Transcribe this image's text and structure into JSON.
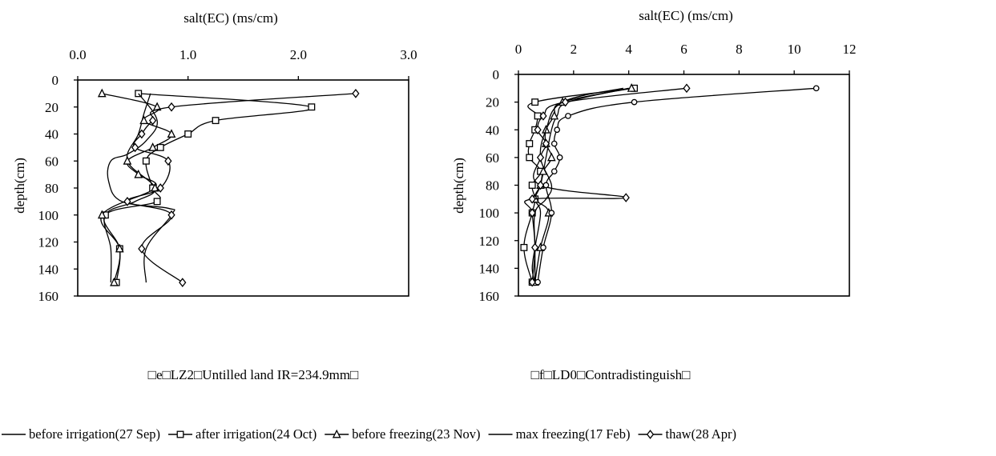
{
  "chart_data": [
    {
      "type": "line",
      "title": "",
      "caption": "□e□LZ2□Untilled land IR=234.9mm□",
      "xlabel": "salt(EC) (ms/cm)",
      "ylabel": "depth(cm)",
      "xlim": [
        0,
        3.0
      ],
      "ylim": [
        0,
        160
      ],
      "y_inverted": true,
      "x_axis_position": "top",
      "grid": false,
      "xticks": [
        0,
        1,
        2,
        3
      ],
      "xtick_labels": [
        "0.0",
        "1.0",
        "2.0",
        "3.0"
      ],
      "yticks": [
        0,
        20,
        40,
        60,
        80,
        100,
        120,
        140,
        160
      ],
      "ytick_labels": [
        "0",
        "20",
        "40",
        "60",
        "80",
        "100",
        "120",
        "140",
        "160"
      ],
      "series": [
        {
          "name": "before irrigation(27 Sep)",
          "marker": "none",
          "x": [
            0.66,
            0.6,
            0.55,
            0.45,
            0.7,
            0.52,
            0.25,
            0.3,
            0.3
          ],
          "y": [
            10,
            25,
            40,
            60,
            80,
            90,
            100,
            125,
            150
          ]
        },
        {
          "name": "after irrigation(24 Oct)",
          "marker": "square",
          "x": [
            0.55,
            2.12,
            1.25,
            1.0,
            0.75,
            0.62,
            0.68,
            0.72,
            0.25,
            0.38,
            0.35
          ],
          "y": [
            10,
            20,
            30,
            40,
            50,
            60,
            80,
            90,
            100,
            125,
            150
          ]
        },
        {
          "name": "before freezing(23 Nov)",
          "marker": "triangle",
          "x": [
            0.22,
            0.72,
            0.6,
            0.85,
            0.68,
            0.45,
            0.55,
            0.7,
            0.22,
            0.38,
            0.33
          ],
          "y": [
            10,
            20,
            30,
            40,
            50,
            60,
            70,
            80,
            100,
            125,
            150
          ]
        },
        {
          "name": "max freezing(17 Feb)",
          "marker": "none",
          "x": [
            0.55,
            0.72,
            0.62,
            0.45,
            0.3,
            0.28,
            0.4,
            0.82,
            0.85,
            0.62,
            0.62
          ],
          "y": [
            10,
            30,
            45,
            55,
            60,
            75,
            90,
            95,
            100,
            125,
            150
          ]
        },
        {
          "name": "thaw(28 Apr)",
          "marker": "diamond",
          "x": [
            2.52,
            0.85,
            0.68,
            0.58,
            0.52,
            0.82,
            0.75,
            0.45,
            0.85,
            0.58,
            0.95
          ],
          "y": [
            10,
            20,
            30,
            40,
            50,
            60,
            80,
            90,
            100,
            125,
            150
          ]
        }
      ]
    },
    {
      "type": "line",
      "title": "",
      "caption": "□f□LD0□Contradistinguish□",
      "xlabel": "salt(EC) (ms/cm)",
      "ylabel": "depth(cm)",
      "xlim": [
        0,
        12
      ],
      "ylim": [
        0,
        160
      ],
      "y_inverted": true,
      "x_axis_position": "top",
      "grid": false,
      "xticks": [
        0,
        2,
        4,
        6,
        8,
        10,
        12
      ],
      "xtick_labels": [
        "0",
        "2",
        "4",
        "6",
        "8",
        "10",
        "12"
      ],
      "yticks": [
        0,
        20,
        40,
        60,
        80,
        100,
        120,
        140,
        160
      ],
      "ytick_labels": [
        "0",
        "20",
        "40",
        "60",
        "80",
        "100",
        "120",
        "140",
        "160"
      ],
      "series": [
        {
          "name": "before irrigation(27 Sep)",
          "marker": "none",
          "x": [
            4.0,
            1.8,
            1.4,
            1.2,
            1.0,
            0.8,
            0.6,
            0.8,
            0.6,
            0.5,
            0.6
          ],
          "y": [
            10,
            20,
            30,
            40,
            60,
            80,
            90,
            100,
            125,
            140,
            150
          ]
        },
        {
          "name": "after irrigation(24 Oct)",
          "marker": "square",
          "x": [
            4.2,
            0.6,
            0.7,
            0.6,
            0.4,
            0.4,
            0.8,
            0.5,
            0.6,
            0.5,
            0.2,
            0.5
          ],
          "y": [
            10,
            20,
            30,
            40,
            50,
            60,
            70,
            80,
            90,
            100,
            125,
            150
          ]
        },
        {
          "name": "before freezing(23 Nov)",
          "marker": "triangle",
          "x": [
            4.1,
            1.6,
            1.3,
            1.0,
            1.0,
            1.2,
            0.9,
            0.8,
            0.6,
            1.1,
            0.8,
            0.6
          ],
          "y": [
            10,
            20,
            30,
            40,
            50,
            60,
            70,
            80,
            90,
            100,
            125,
            150
          ]
        },
        {
          "name": "max freezing(17 Feb)",
          "marker": "none",
          "x": [
            3.8,
            1.6,
            1.0,
            0.8,
            1.2,
            1.0,
            0.6,
            0.6,
            0.6
          ],
          "y": [
            10,
            20,
            40,
            60,
            80,
            90,
            100,
            125,
            150
          ]
        },
        {
          "name": "thaw(28 Apr)",
          "marker": "diamond",
          "x": [
            6.1,
            1.7,
            0.9,
            0.7,
            1.0,
            0.8,
            0.8,
            3.9,
            0.5,
            0.5,
            0.6,
            0.5
          ],
          "y": [
            10,
            20,
            30,
            40,
            50,
            60,
            80,
            89,
            90,
            100,
            125,
            150
          ]
        },
        {
          "name": "",
          "marker": "circle",
          "x": [
            10.8,
            4.2,
            1.8,
            1.4,
            1.3,
            1.5,
            1.3,
            1.0,
            1.2,
            0.9,
            0.7
          ],
          "y": [
            10,
            20,
            30,
            40,
            50,
            60,
            70,
            80,
            100,
            125,
            150
          ]
        }
      ]
    }
  ],
  "legend": {
    "placement": "bottom",
    "items": [
      {
        "label": "before irrigation(27 Sep)",
        "marker": "none"
      },
      {
        "label": "after irrigation(24 Oct)",
        "marker": "square"
      },
      {
        "label": "before freezing(23 Nov)",
        "marker": "triangle"
      },
      {
        "label": "max freezing(17 Feb)",
        "marker": "none"
      },
      {
        "label": "thaw(28 Apr)",
        "marker": "diamond"
      }
    ]
  }
}
